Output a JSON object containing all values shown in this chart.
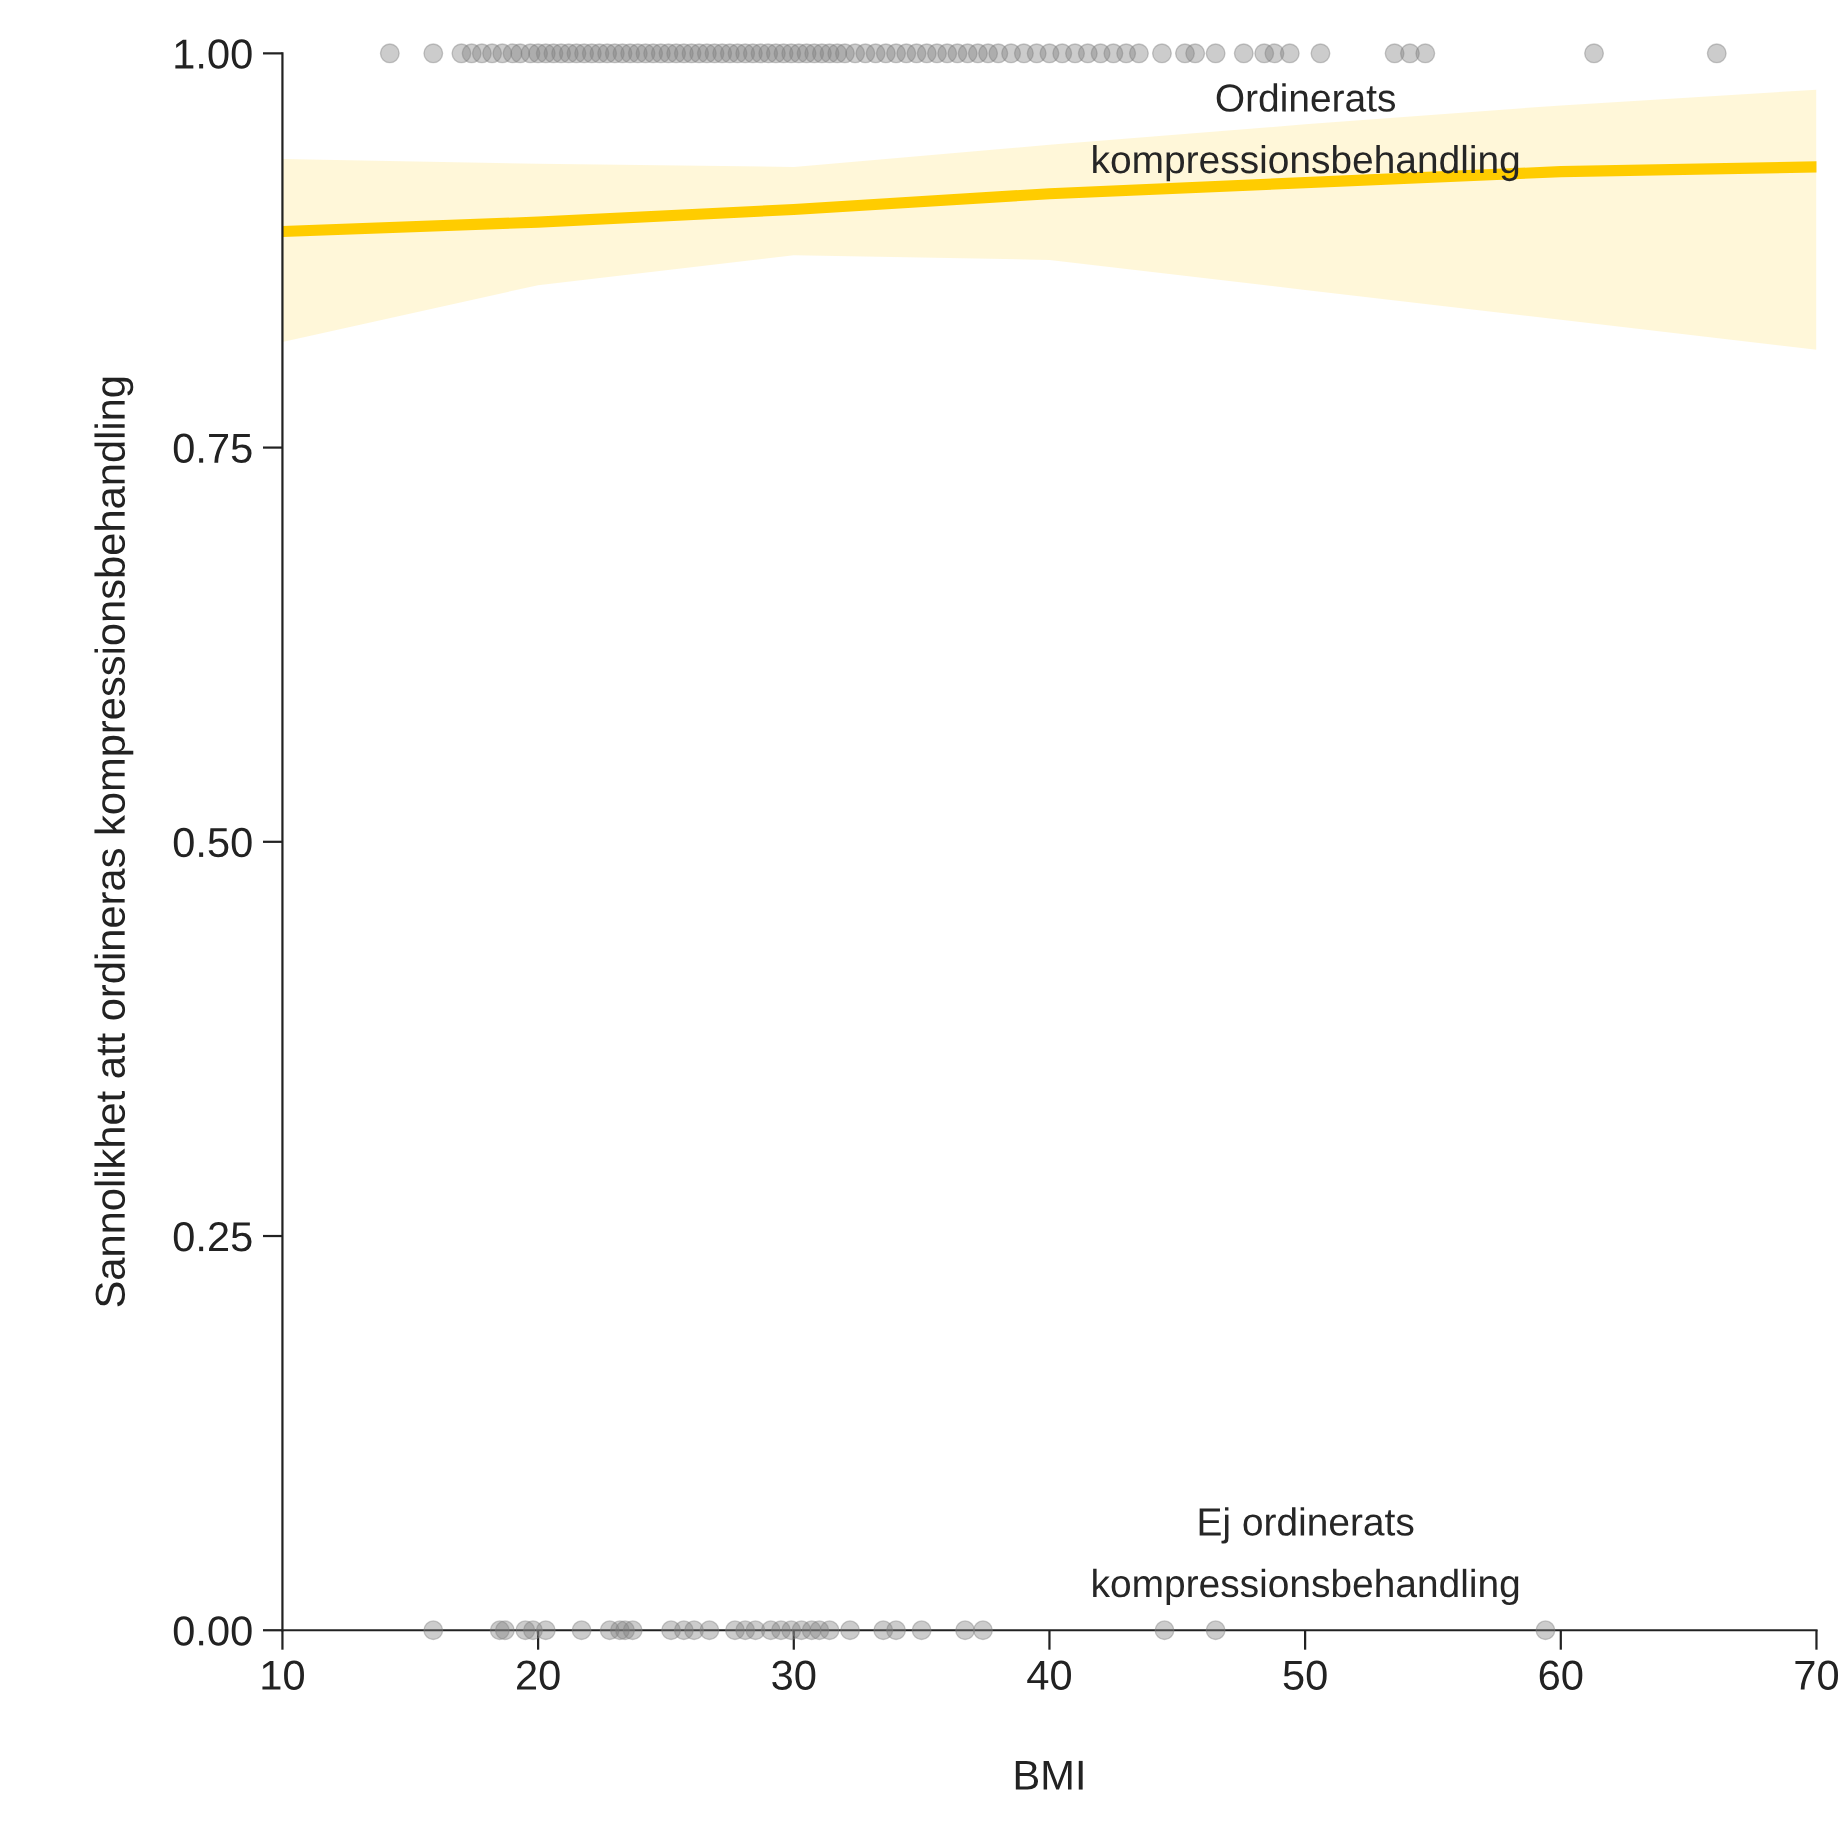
{
  "chart_data": {
    "type": "scatter",
    "xlabel": "BMI",
    "ylabel": "Sannolikhet att ordineras kompressionsbehandling",
    "xlim": [
      10,
      70
    ],
    "xticks": [
      10,
      20,
      30,
      40,
      50,
      60,
      70
    ],
    "ylim": [
      0,
      1
    ],
    "yticks": [
      {
        "value": 0,
        "label": "0.00"
      },
      {
        "value": 0.25,
        "label": "0.25"
      },
      {
        "value": 0.5,
        "label": "0.50"
      },
      {
        "value": 0.75,
        "label": "0.75"
      },
      {
        "value": 1,
        "label": "1.00"
      }
    ],
    "grid": false,
    "legend": false,
    "series": [
      {
        "marker": "circle",
        "color": "#7f7f7f",
        "x": [
          14.2,
          15.9,
          17.0,
          17.4,
          17.8,
          18.2,
          18.6,
          19.0,
          19.3,
          19.7,
          20.0,
          20.3,
          20.6,
          20.9,
          21.2,
          21.5,
          21.8,
          22.1,
          22.4,
          22.7,
          23.0,
          23.3,
          23.6,
          23.9,
          24.2,
          24.5,
          24.8,
          25.1,
          25.4,
          25.7,
          26.0,
          26.3,
          26.6,
          26.9,
          27.2,
          27.5,
          27.8,
          28.1,
          28.4,
          28.7,
          29.0,
          29.3,
          29.6,
          29.9,
          30.2,
          30.5,
          30.8,
          31.1,
          31.4,
          31.7,
          32.0,
          32.4,
          32.8,
          33.2,
          33.6,
          34.0,
          34.4,
          34.8,
          35.2,
          35.6,
          36.0,
          36.4,
          36.8,
          37.2,
          37.6,
          38.0,
          38.5,
          39.0,
          39.5,
          40.0,
          40.5,
          41.0,
          41.5,
          42.0,
          42.5,
          43.0,
          43.5,
          44.4,
          45.3,
          45.7,
          46.5,
          47.6,
          48.4,
          48.8,
          49.4,
          50.6,
          53.5,
          54.1,
          54.7,
          61.3,
          66.1
        ],
        "values": [
          1,
          1,
          1,
          1,
          1,
          1,
          1,
          1,
          1,
          1,
          1,
          1,
          1,
          1,
          1,
          1,
          1,
          1,
          1,
          1,
          1,
          1,
          1,
          1,
          1,
          1,
          1,
          1,
          1,
          1,
          1,
          1,
          1,
          1,
          1,
          1,
          1,
          1,
          1,
          1,
          1,
          1,
          1,
          1,
          1,
          1,
          1,
          1,
          1,
          1,
          1,
          1,
          1,
          1,
          1,
          1,
          1,
          1,
          1,
          1,
          1,
          1,
          1,
          1,
          1,
          1,
          1,
          1,
          1,
          1,
          1,
          1,
          1,
          1,
          1,
          1,
          1,
          1,
          1,
          1,
          1,
          1,
          1,
          1,
          1,
          1,
          1,
          1,
          1,
          1,
          1
        ]
      },
      {
        "marker": "circle",
        "color": "#7f7f7f",
        "x": [
          15.9,
          18.5,
          18.7,
          19.5,
          19.8,
          20.3,
          21.7,
          22.8,
          23.2,
          23.4,
          23.7,
          25.2,
          25.7,
          26.1,
          26.7,
          27.7,
          28.1,
          28.5,
          29.1,
          29.5,
          29.9,
          30.3,
          30.7,
          31.0,
          31.4,
          32.2,
          33.5,
          34.0,
          35.0,
          36.7,
          37.4,
          44.5,
          46.5,
          59.4
        ],
        "values": [
          0,
          0,
          0,
          0,
          0,
          0,
          0,
          0,
          0,
          0,
          0,
          0,
          0,
          0,
          0,
          0,
          0,
          0,
          0,
          0,
          0,
          0,
          0,
          0,
          0,
          0,
          0,
          0,
          0,
          0,
          0,
          0,
          0,
          0
        ]
      },
      {
        "type": "line",
        "color": "#ffcc00",
        "x": [
          10,
          20,
          30,
          40,
          50,
          60,
          70
        ],
        "values": [
          0.887,
          0.893,
          0.901,
          0.911,
          0.918,
          0.925,
          0.928
        ],
        "lower": [
          0.817,
          0.853,
          0.872,
          0.869,
          0.85,
          0.831,
          0.812
        ],
        "upper": [
          0.933,
          0.93,
          0.928,
          0.942,
          0.955,
          0.967,
          0.977
        ]
      }
    ],
    "annotations": [
      "Ordinerats\nkompressionsbehandling",
      "Ej ordinerats\nkompressionsbehandling"
    ]
  }
}
